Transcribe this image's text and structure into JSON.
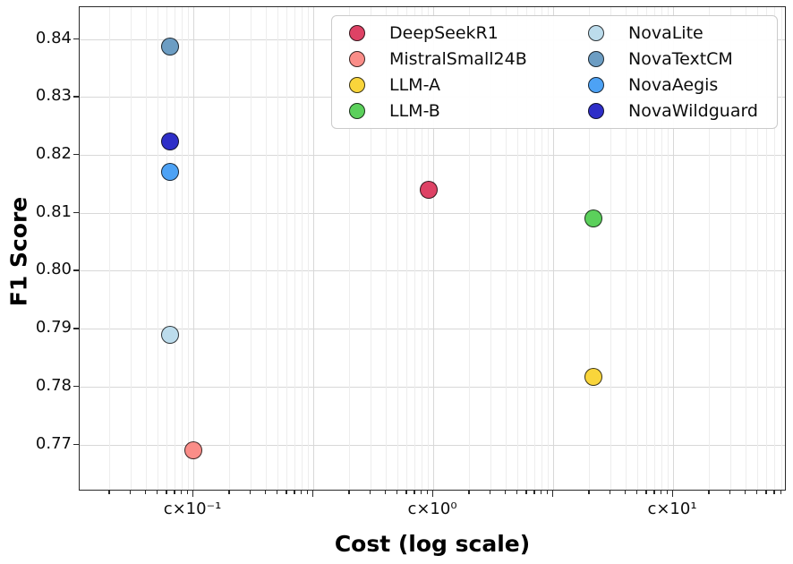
{
  "chart_data": {
    "type": "scatter",
    "title": "",
    "xlabel": "Cost (log scale)",
    "ylabel": "F1 Score",
    "x_scale": "log",
    "grid": "on",
    "legend_position": "upper right",
    "legend_columns": 2,
    "ylim": [
      0.7619,
      0.8455
    ],
    "y_ticks": [
      {
        "value": 0.84,
        "label": "0.84"
      },
      {
        "value": 0.83,
        "label": "0.83"
      },
      {
        "value": 0.82,
        "label": "0.82"
      },
      {
        "value": 0.81,
        "label": "0.81"
      },
      {
        "value": 0.8,
        "label": "0.80"
      },
      {
        "value": 0.79,
        "label": "0.79"
      },
      {
        "value": 0.78,
        "label": "0.78"
      },
      {
        "value": 0.77,
        "label": "0.77"
      }
    ],
    "x_ticks": [
      {
        "cost": 0.1,
        "label": "c×10⁻¹"
      },
      {
        "cost": 1,
        "label": "c×10⁰"
      },
      {
        "cost": 10,
        "label": "c×10¹"
      }
    ],
    "series": [
      {
        "name": "DeepSeekR1",
        "color": "#DE4265",
        "cost": 0.96,
        "f1": 0.814,
        "legend_col": 1
      },
      {
        "name": "MistralSmall24B",
        "color": "#FA8D88",
        "cost": 0.1,
        "f1": 0.769,
        "legend_col": 1
      },
      {
        "name": "LLM-A",
        "color": "#F9D53B",
        "cost": 4.65,
        "f1": 0.7817,
        "legend_col": 1
      },
      {
        "name": "LLM-B",
        "color": "#5BD05B",
        "cost": 4.65,
        "f1": 0.809,
        "legend_col": 1
      },
      {
        "name": "NovaLite",
        "color": "#BCDCEC",
        "cost": 0.08,
        "f1": 0.789,
        "legend_col": 2
      },
      {
        "name": "NovaTextCM",
        "color": "#6C9DC3",
        "cost": 0.08,
        "f1": 0.8387,
        "legend_col": 2
      },
      {
        "name": "NovaAegis",
        "color": "#4DA2F5",
        "cost": 0.08,
        "f1": 0.817,
        "legend_col": 2
      },
      {
        "name": "NovaWildguard",
        "color": "#2E2EC8",
        "cost": 0.08,
        "f1": 0.8223,
        "legend_col": 2
      }
    ]
  }
}
